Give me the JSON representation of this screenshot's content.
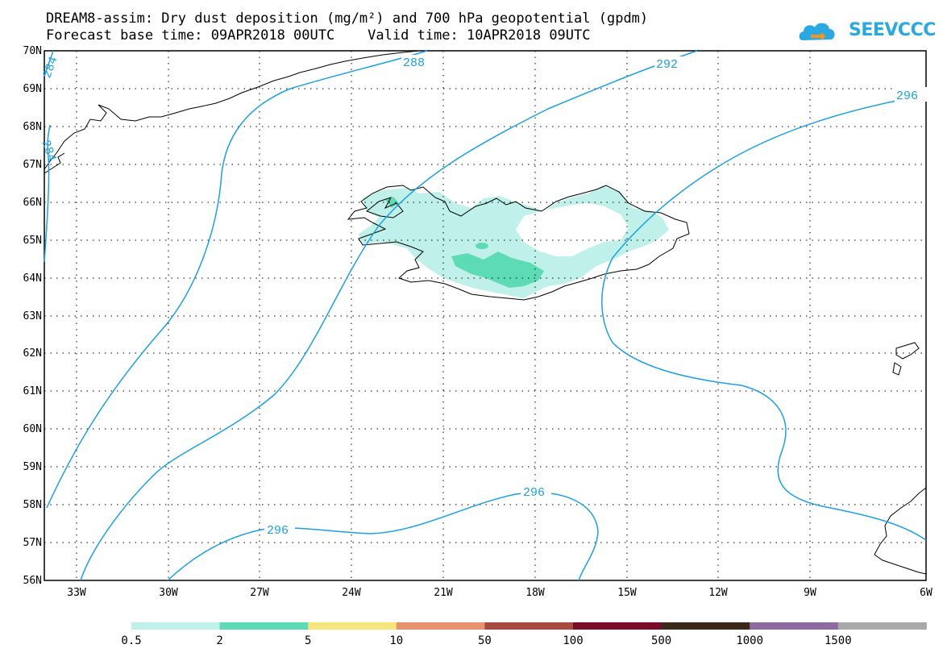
{
  "title_line1": "DREAM8-assim: Dry dust deposition (mg/m²) and 700 hPa geopotential (gpdm)",
  "title_line2": "Forecast base time: 09APR2018 00UTC    Valid time: 10APR2018 09UTC",
  "logo_text": "SEEVCCC",
  "lat_labels": [
    "70N",
    "69N",
    "68N",
    "67N",
    "66N",
    "65N",
    "64N",
    "63N",
    "62N",
    "61N",
    "60N",
    "59N",
    "58N",
    "57N",
    "56N"
  ],
  "lon_labels": [
    "33W",
    "30W",
    "27W",
    "24W",
    "21W",
    "18W",
    "15W",
    "12W",
    "9W",
    "6W"
  ],
  "contour_labels": {
    "c288": "288",
    "c292": "292",
    "c296_ne": "296",
    "c296_s1": "296",
    "c296_s2": "296",
    "c284_a": "284",
    "c284_b": "284"
  },
  "colorbar": {
    "colors": [
      "#bff1ea",
      "#5ddbb4",
      "#f6e57b",
      "#e8916c",
      "#a84a40",
      "#7a0c2a",
      "#3b2a1a",
      "#8e6aa0",
      "#a8a8a8"
    ],
    "labels": [
      "0.5",
      "2",
      "5",
      "10",
      "50",
      "100",
      "500",
      "1000",
      "1500"
    ]
  },
  "contour_color": "#1aa0e6",
  "map_bounds": {
    "lon_min": -34.5,
    "lon_max": -6,
    "lat_min": 56,
    "lat_max": 70
  }
}
